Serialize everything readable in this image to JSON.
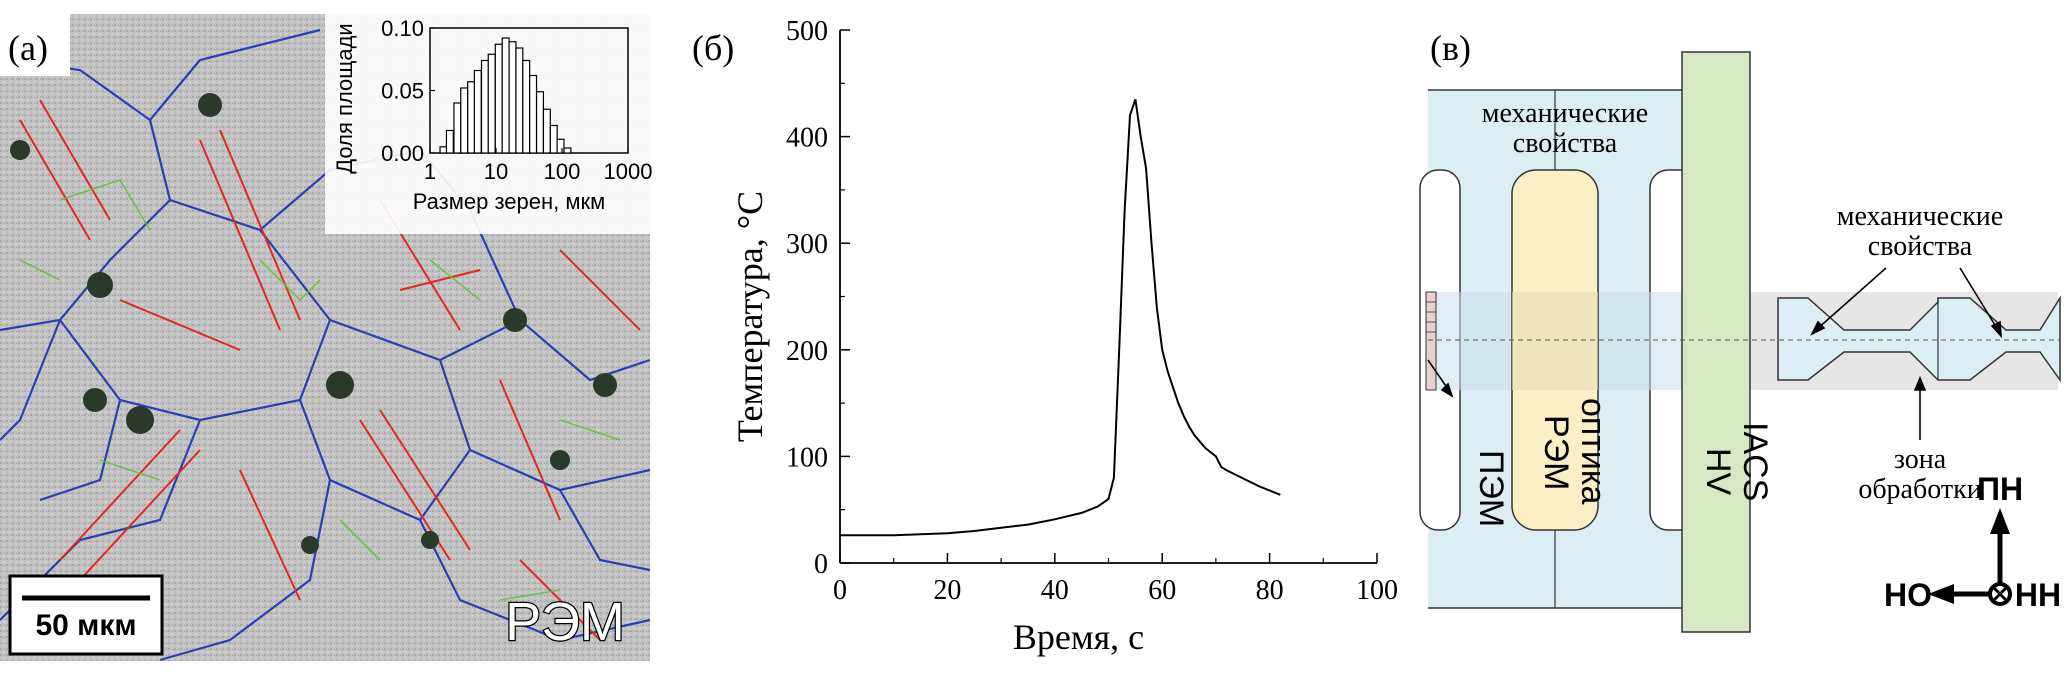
{
  "panel_labels": {
    "a": "(а)",
    "b": "(б)",
    "c": "(в)"
  },
  "panel_a": {
    "scale_bar_label": "50 мкм",
    "technique_label": "РЭМ",
    "colors": {
      "grain_boundary_high": "#2a3fb0",
      "grain_boundary_twin": "#e02a20",
      "grain_boundary_low": "#5fc23a",
      "background": "#bdbdbd"
    }
  },
  "chart_data": [
    {
      "type": "bar",
      "id": "grain-size-histogram",
      "xlabel": "Размер зерен, мкм",
      "ylabel": "Доля площади",
      "xscale": "log",
      "xlim": [
        1,
        1000
      ],
      "ylim": [
        0,
        0.1
      ],
      "xticks": [
        "1",
        "10",
        "100",
        "1000"
      ],
      "yticks": [
        "0.00",
        "0.05",
        "0.10"
      ],
      "bins": [
        {
          "x": 1.6,
          "value": 0.005
        },
        {
          "x": 2.0,
          "value": 0.018
        },
        {
          "x": 2.6,
          "value": 0.04
        },
        {
          "x": 3.3,
          "value": 0.052
        },
        {
          "x": 4.2,
          "value": 0.057
        },
        {
          "x": 5.3,
          "value": 0.066
        },
        {
          "x": 6.8,
          "value": 0.074
        },
        {
          "x": 8.6,
          "value": 0.079
        },
        {
          "x": 11.0,
          "value": 0.087
        },
        {
          "x": 14.0,
          "value": 0.092
        },
        {
          "x": 17.8,
          "value": 0.089
        },
        {
          "x": 22.6,
          "value": 0.084
        },
        {
          "x": 28.7,
          "value": 0.074
        },
        {
          "x": 36.5,
          "value": 0.062
        },
        {
          "x": 46.4,
          "value": 0.049
        },
        {
          "x": 59.0,
          "value": 0.035
        },
        {
          "x": 75.0,
          "value": 0.022
        },
        {
          "x": 95.0,
          "value": 0.011
        },
        {
          "x": 121.0,
          "value": 0.004
        }
      ]
    },
    {
      "type": "line",
      "id": "temperature-time",
      "xlabel": "Время, с",
      "ylabel": "Температура, °С",
      "xlim": [
        0,
        100
      ],
      "ylim": [
        0,
        500
      ],
      "xticks": [
        "0",
        "20",
        "40",
        "60",
        "80",
        "100"
      ],
      "yticks": [
        "0",
        "100",
        "200",
        "300",
        "400",
        "500"
      ],
      "series": [
        {
          "x": [
            0,
            5,
            10,
            15,
            20,
            25,
            30,
            35,
            40,
            45,
            48,
            50,
            51,
            52,
            53,
            54,
            55,
            56,
            57,
            58,
            59,
            60,
            61,
            62,
            63,
            64,
            65,
            66,
            67,
            68,
            69,
            70,
            71,
            72,
            74,
            76,
            78,
            80,
            82
          ],
          "y": [
            26,
            26,
            26,
            27,
            28,
            30,
            33,
            36,
            41,
            47,
            53,
            60,
            80,
            200,
            330,
            420,
            435,
            400,
            370,
            300,
            240,
            200,
            180,
            165,
            150,
            138,
            128,
            120,
            114,
            108,
            104,
            100,
            90,
            87,
            82,
            77,
            72,
            68,
            64
          ]
        }
      ]
    }
  ],
  "panel_c": {
    "label_mech_top": [
      "механические",
      "свойства"
    ],
    "label_mech_right": [
      "механические",
      "свойства"
    ],
    "label_pem": "ПЭМ",
    "label_sem_optics": [
      "РЭМ",
      "оптика"
    ],
    "label_hv": [
      "HV",
      "IACS"
    ],
    "label_zone": [
      "зона",
      "обработки"
    ],
    "axes_labels": {
      "up": "ПН",
      "left": "НО",
      "out": "НН"
    },
    "colors": {
      "light_blue": "#dbeef4",
      "light_yellow": "#fcefc6",
      "light_green": "#d8e8c4",
      "light_grey": "#e6e6e6"
    }
  }
}
